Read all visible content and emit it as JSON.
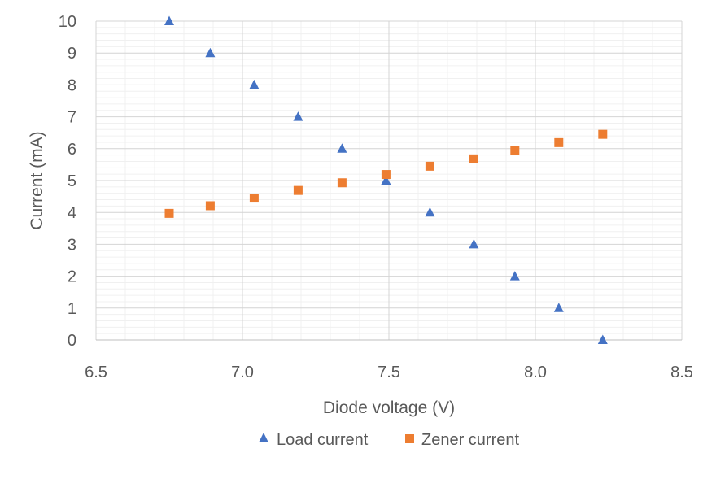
{
  "chart_data": {
    "type": "scatter",
    "title": "",
    "xlabel": "Diode voltage (V)",
    "ylabel": "Current (mA)",
    "xlim": [
      6.5,
      8.5
    ],
    "ylim": [
      0,
      10
    ],
    "x_ticks": [
      "6.5",
      "7.0",
      "7.5",
      "8.0",
      "8.5"
    ],
    "y_ticks": [
      "0",
      "1",
      "2",
      "3",
      "4",
      "5",
      "6",
      "7",
      "8",
      "9",
      "10"
    ],
    "x_major_step": 0.5,
    "x_minor_step": 0.1,
    "y_major_step": 1,
    "y_minor_step": 0.2,
    "grid": true,
    "legend_position": "bottom",
    "series": [
      {
        "name": "Load current",
        "marker": "triangle",
        "color": "#4472C4",
        "points": [
          {
            "x": 6.75,
            "y": 10
          },
          {
            "x": 6.89,
            "y": 9
          },
          {
            "x": 7.04,
            "y": 8
          },
          {
            "x": 7.19,
            "y": 7
          },
          {
            "x": 7.34,
            "y": 6
          },
          {
            "x": 7.49,
            "y": 5
          },
          {
            "x": 7.64,
            "y": 4
          },
          {
            "x": 7.79,
            "y": 3
          },
          {
            "x": 7.93,
            "y": 2
          },
          {
            "x": 8.08,
            "y": 1
          },
          {
            "x": 8.23,
            "y": 0
          }
        ]
      },
      {
        "name": "Zener current",
        "marker": "square",
        "color": "#ED7D31",
        "points": [
          {
            "x": 6.75,
            "y": 3.97
          },
          {
            "x": 6.89,
            "y": 4.21
          },
          {
            "x": 7.04,
            "y": 4.45
          },
          {
            "x": 7.19,
            "y": 4.69
          },
          {
            "x": 7.34,
            "y": 4.93
          },
          {
            "x": 7.49,
            "y": 5.19
          },
          {
            "x": 7.64,
            "y": 5.45
          },
          {
            "x": 7.79,
            "y": 5.68
          },
          {
            "x": 7.93,
            "y": 5.94
          },
          {
            "x": 8.08,
            "y": 6.19
          },
          {
            "x": 8.23,
            "y": 6.45
          }
        ]
      }
    ]
  }
}
